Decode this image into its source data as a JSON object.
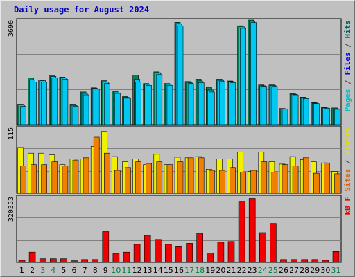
{
  "title": "Daily usage for August 2024",
  "chart_data": {
    "type": "bar",
    "title": "Daily usage for August 2024",
    "categories": [
      "1",
      "2",
      "3",
      "4",
      "5",
      "6",
      "7",
      "8",
      "9",
      "10",
      "11",
      "12",
      "13",
      "14",
      "15",
      "16",
      "17",
      "18",
      "19",
      "20",
      "21",
      "22",
      "23",
      "24",
      "25",
      "26",
      "27",
      "28",
      "29",
      "30",
      "31"
    ],
    "weekend_days": [
      "3",
      "4",
      "10",
      "11",
      "17",
      "18",
      "24",
      "25",
      "31"
    ],
    "panels": [
      {
        "id": "hits-files",
        "max_label": "3690",
        "ylim": [
          0,
          3690
        ],
        "side_labels": [
          {
            "text": "Pages",
            "color": "#00c0c0"
          },
          {
            "text": " / ",
            "color": "#404040"
          },
          {
            "text": "Files",
            "color": "#0000ff"
          },
          {
            "text": " / ",
            "color": "#404040"
          },
          {
            "text": "Hits",
            "color": "#006060"
          }
        ],
        "series": [
          {
            "name": "Hits",
            "color": "#00805a",
            "values": [
              720,
              1650,
              1580,
              1720,
              1680,
              720,
              1150,
              1300,
              1550,
              1180,
              990,
              1750,
              1450,
              1860,
              1450,
              3610,
              1520,
              1600,
              1320,
              1600,
              1540,
              3490,
              3690,
              1400,
              1400,
              570,
              1100,
              970,
              780,
              600,
              590
            ]
          },
          {
            "name": "Files",
            "color": "#00c8f0",
            "values": [
              700,
              1580,
              1550,
              1700,
              1650,
              680,
              1100,
              1280,
              1500,
              1150,
              960,
              1600,
              1420,
              1830,
              1420,
              3550,
              1480,
              1540,
              1220,
              1560,
              1520,
              3450,
              3640,
              1370,
              1380,
              560,
              1070,
              940,
              760,
              590,
              560
            ]
          },
          {
            "name": "Pages",
            "color": "#00c8f0",
            "values": [
              650,
              1500,
              1500,
              1650,
              1600,
              650,
              1050,
              1250,
              1450,
              1100,
              930,
              1500,
              1380,
              1780,
              1380,
              3480,
              1450,
              1480,
              1150,
              1520,
              1480,
              3400,
              3600,
              1350,
              1350,
              550,
              1050,
              920,
              740,
              580,
              540
            ]
          }
        ]
      },
      {
        "id": "sites-visits",
        "max_label": "115",
        "ylim": [
          0,
          115
        ],
        "side_labels": [
          {
            "text": "Sites",
            "color": "#e06000"
          },
          {
            "text": " / ",
            "color": "#404040"
          },
          {
            "text": "Visits",
            "color": "#e0e000"
          }
        ],
        "series": [
          {
            "name": "Visits",
            "color": "#f0f000",
            "values": [
              80,
              70,
              70,
              67,
              50,
              60,
              60,
              82,
              108,
              64,
              55,
              60,
              50,
              68,
              50,
              63,
              62,
              64,
              42,
              60,
              60,
              72,
              38,
              72,
              55,
              51,
              64,
              59,
              55,
              53,
              38
            ]
          },
          {
            "name": "Sites",
            "color": "#f08000",
            "values": [
              48,
              50,
              50,
              55,
              48,
              58,
              62,
              98,
              70,
              40,
              45,
              55,
              52,
              55,
              50,
              55,
              62,
              62,
              40,
              40,
              45,
              37,
              40,
              55,
              37,
              50,
              48,
              62,
              35,
              53,
              34
            ]
          }
        ]
      },
      {
        "id": "kbytes",
        "max_label": "320353",
        "ylim": [
          0,
          320353
        ],
        "side_labels": [
          {
            "text": "kB F",
            "color": "#e00000"
          }
        ],
        "series": [
          {
            "name": "kB F",
            "color": "#f00000",
            "values": [
              10000,
              50000,
              18000,
              18000,
              18000,
              8000,
              14000,
              14000,
              150000,
              44000,
              50000,
              88000,
              132000,
              112000,
              88000,
              80000,
              93000,
              142000,
              46000,
              98000,
              102000,
              298000,
              312000,
              145000,
              190000,
              14000,
              14000,
              14000,
              14000,
              10000,
              53000
            ]
          }
        ]
      }
    ]
  }
}
